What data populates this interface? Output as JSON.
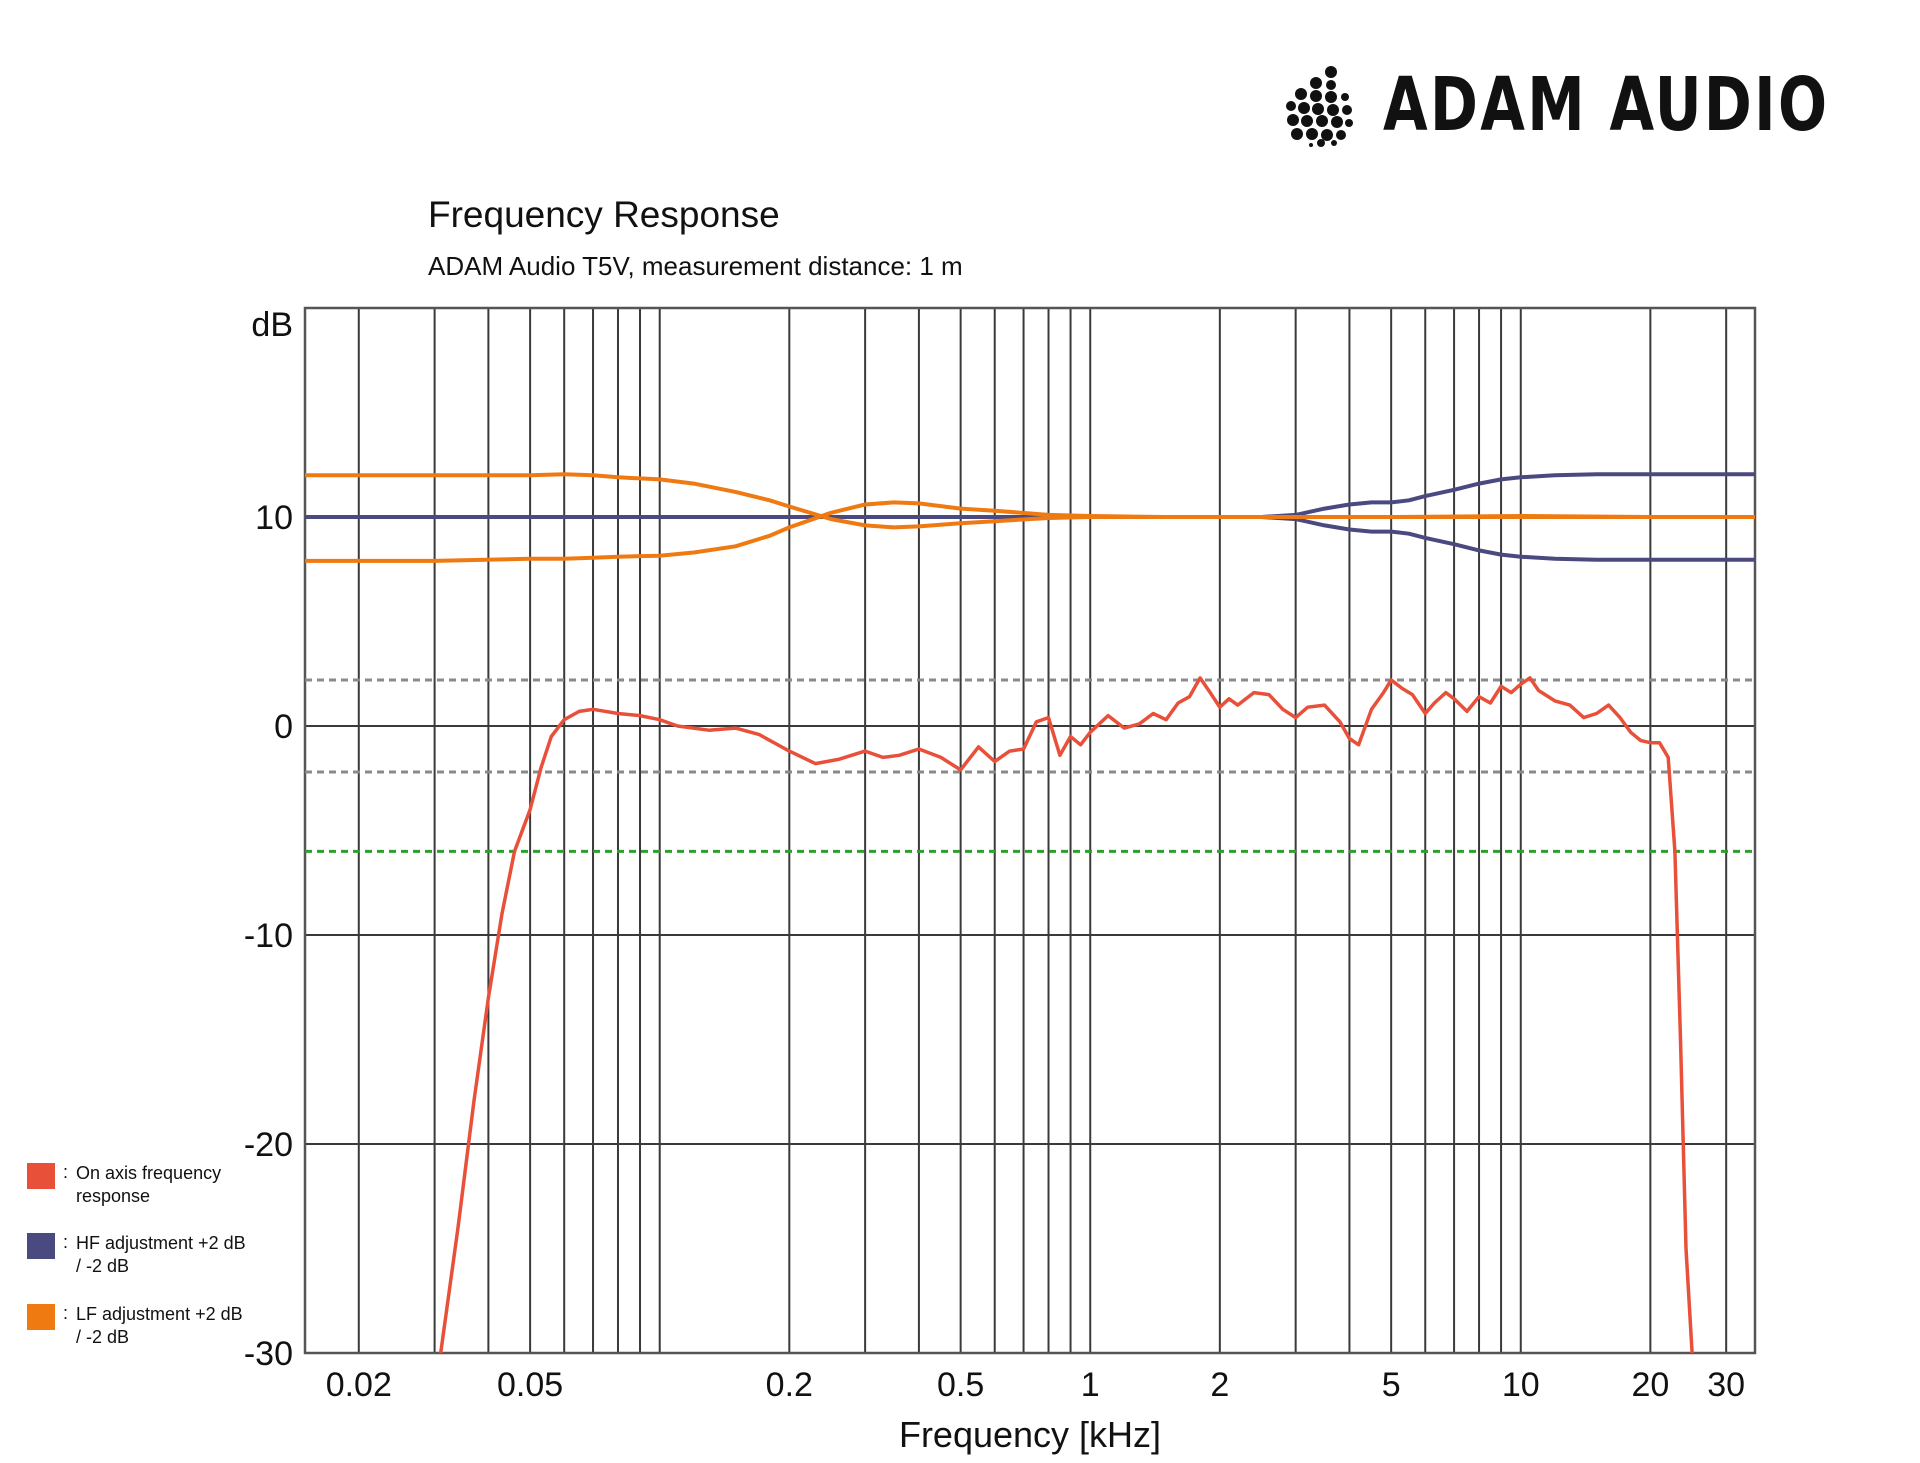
{
  "brand": {
    "name": "ADAM AUDIO"
  },
  "chart_data": {
    "type": "line",
    "title": "Frequency Response",
    "subtitle": "ADAM Audio T5V, measurement distance: 1 m",
    "xlabel": "Frequency [kHz]",
    "ylabel": "dB",
    "x_scale": "log",
    "xlim": [
      0.015,
      35
    ],
    "ylim": [
      -30,
      20
    ],
    "x_ticks": [
      {
        "value": 0.02,
        "label": "0.02"
      },
      {
        "value": 0.05,
        "label": "0.05"
      },
      {
        "value": 0.2,
        "label": "0.2"
      },
      {
        "value": 0.5,
        "label": "0.5"
      },
      {
        "value": 1,
        "label": "1"
      },
      {
        "value": 2,
        "label": "2"
      },
      {
        "value": 5,
        "label": "5"
      },
      {
        "value": 10,
        "label": "10"
      },
      {
        "value": 20,
        "label": "20"
      },
      {
        "value": 30,
        "label": "30"
      }
    ],
    "y_ticks": [
      {
        "value": 10,
        "label": "10"
      },
      {
        "value": 0,
        "label": "0"
      },
      {
        "value": -10,
        "label": "-10"
      },
      {
        "value": -20,
        "label": "-20"
      },
      {
        "value": -30,
        "label": "-30"
      }
    ],
    "grid": true,
    "reference_lines": [
      {
        "y": 2.2,
        "style": "dashed",
        "color": "#8a8a8a"
      },
      {
        "y": -2.2,
        "style": "dashed",
        "color": "#8a8a8a"
      },
      {
        "y": -6,
        "style": "dashed",
        "color": "#2ca02c"
      }
    ],
    "legend_position": "left-bottom",
    "legend": [
      {
        "label": "On axis frequency response",
        "color": "#e8503a"
      },
      {
        "label": "HF adjustment +2 dB / -2 dB",
        "color": "#4a4a80"
      },
      {
        "label": "LF adjustment +2 dB / -2 dB",
        "color": "#f07a12"
      }
    ],
    "series": [
      {
        "color": "#e8503a",
        "x": [
          0.031,
          0.034,
          0.037,
          0.04,
          0.043,
          0.046,
          0.05,
          0.053,
          0.056,
          0.06,
          0.065,
          0.07,
          0.08,
          0.09,
          0.1,
          0.11,
          0.13,
          0.15,
          0.17,
          0.2,
          0.23,
          0.26,
          0.3,
          0.33,
          0.36,
          0.4,
          0.45,
          0.5,
          0.55,
          0.6,
          0.65,
          0.7,
          0.75,
          0.8,
          0.85,
          0.9,
          0.95,
          1.0,
          1.1,
          1.2,
          1.3,
          1.4,
          1.5,
          1.6,
          1.7,
          1.8,
          1.9,
          2.0,
          2.1,
          2.2,
          2.4,
          2.6,
          2.8,
          3.0,
          3.2,
          3.5,
          3.8,
          4.0,
          4.2,
          4.5,
          4.8,
          5.0,
          5.3,
          5.6,
          6.0,
          6.3,
          6.7,
          7.0,
          7.5,
          8.0,
          8.5,
          9.0,
          9.5,
          10.0,
          10.5,
          11.0,
          12.0,
          13.0,
          14.0,
          15.0,
          16.0,
          17.0,
          18.0,
          19.0,
          20.0,
          21.0,
          22.0,
          22.8,
          23.5,
          24.2,
          25.0
        ],
        "y": [
          -30,
          -24,
          -18,
          -13,
          -9,
          -6,
          -4,
          -2,
          -0.5,
          0.3,
          0.7,
          0.8,
          0.6,
          0.5,
          0.3,
          0,
          -0.2,
          -0.1,
          -0.4,
          -1.2,
          -1.8,
          -1.6,
          -1.2,
          -1.5,
          -1.4,
          -1.1,
          -1.5,
          -2.1,
          -1.0,
          -1.7,
          -1.2,
          -1.1,
          0.2,
          0.4,
          -1.4,
          -0.5,
          -0.9,
          -0.3,
          0.5,
          -0.1,
          0.1,
          0.6,
          0.3,
          1.1,
          1.4,
          2.3,
          1.6,
          0.9,
          1.3,
          1.0,
          1.6,
          1.5,
          0.8,
          0.4,
          0.9,
          1.0,
          0.2,
          -0.6,
          -0.9,
          0.8,
          1.6,
          2.2,
          1.8,
          1.5,
          0.6,
          1.1,
          1.6,
          1.3,
          0.7,
          1.4,
          1.1,
          1.9,
          1.6,
          2.0,
          2.3,
          1.7,
          1.2,
          1.0,
          0.4,
          0.6,
          1.0,
          0.4,
          -0.3,
          -0.7,
          -0.8,
          -0.8,
          -1.5,
          -6,
          -15,
          -25,
          -30
        ]
      },
      {
        "color": "#4a4a80",
        "x": [
          0.015,
          0.1,
          1,
          2,
          2.5,
          3,
          3.5,
          4,
          4.5,
          5,
          5.5,
          6,
          7,
          8,
          9,
          10,
          12,
          15,
          20,
          35
        ],
        "y": [
          10,
          10,
          10,
          10,
          10,
          10.1,
          10.4,
          10.6,
          10.7,
          10.7,
          10.8,
          11.0,
          11.3,
          11.6,
          11.8,
          11.9,
          12.0,
          12.05,
          12.05,
          12.05
        ]
      },
      {
        "color": "#4a4a80",
        "x": [
          0.015,
          0.1,
          1,
          2,
          2.5,
          3,
          3.5,
          4,
          4.5,
          5,
          5.5,
          6,
          7,
          8,
          9,
          10,
          12,
          15,
          20,
          35
        ],
        "y": [
          10,
          10,
          10,
          10,
          10,
          9.9,
          9.6,
          9.4,
          9.3,
          9.3,
          9.2,
          9.0,
          8.7,
          8.4,
          8.2,
          8.1,
          8.0,
          7.95,
          7.95,
          7.95
        ]
      },
      {
        "color": "#f07a12",
        "x": [
          0.015,
          0.03,
          0.05,
          0.06,
          0.07,
          0.08,
          0.1,
          0.12,
          0.15,
          0.18,
          0.2,
          0.25,
          0.3,
          0.35,
          0.4,
          0.5,
          0.6,
          0.8,
          1,
          1.5,
          2,
          3,
          5,
          10,
          20,
          35
        ],
        "y": [
          12,
          12,
          12,
          12.05,
          12,
          11.9,
          11.8,
          11.6,
          11.2,
          10.8,
          10.5,
          9.9,
          9.6,
          9.5,
          9.55,
          9.7,
          9.8,
          9.95,
          10,
          10,
          10,
          10,
          10,
          10.05,
          10,
          10
        ]
      },
      {
        "color": "#f07a12",
        "x": [
          0.015,
          0.03,
          0.05,
          0.06,
          0.07,
          0.08,
          0.1,
          0.12,
          0.15,
          0.18,
          0.2,
          0.25,
          0.3,
          0.35,
          0.4,
          0.5,
          0.6,
          0.8,
          1,
          1.5,
          2,
          3,
          5,
          10,
          20,
          35
        ],
        "y": [
          7.9,
          7.9,
          8.0,
          8.0,
          8.05,
          8.1,
          8.15,
          8.3,
          8.6,
          9.1,
          9.5,
          10.2,
          10.6,
          10.7,
          10.65,
          10.4,
          10.3,
          10.1,
          10.05,
          10,
          10,
          10,
          10,
          10,
          10,
          10
        ]
      }
    ]
  }
}
